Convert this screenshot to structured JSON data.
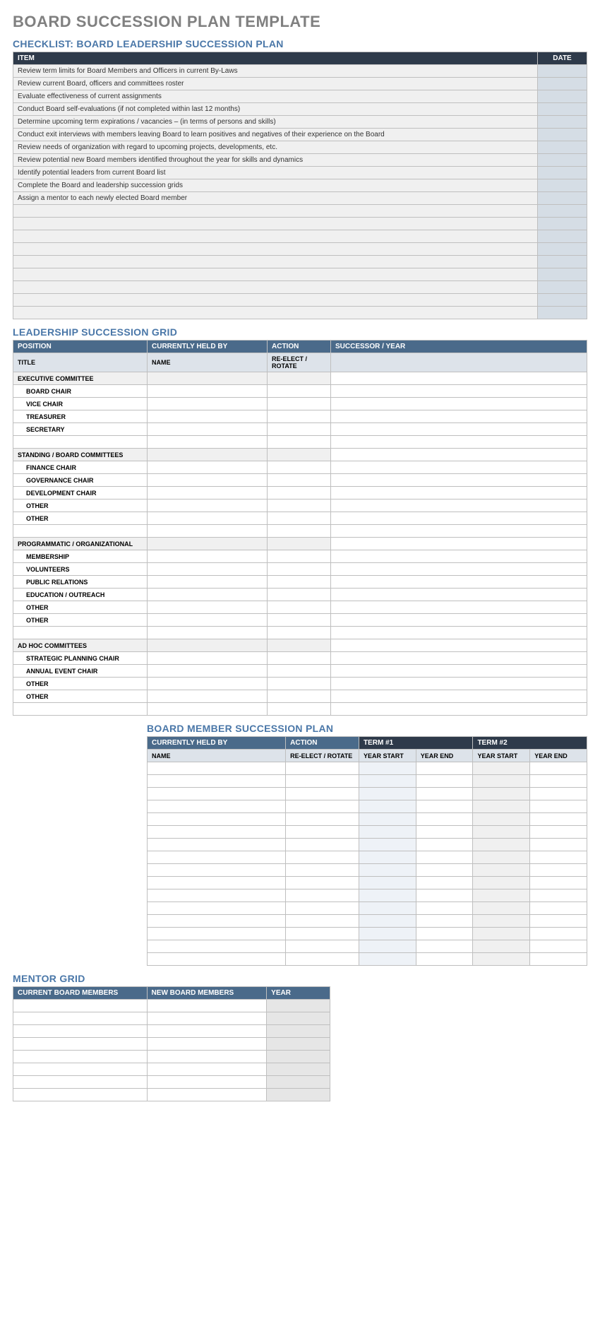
{
  "main_title": "BOARD SUCCESSION PLAN TEMPLATE",
  "checklist": {
    "title": "CHECKLIST: BOARD LEADERSHIP SUCCESSION PLAN",
    "headers": {
      "item": "ITEM",
      "date": "DATE"
    },
    "items": [
      "Review term limits for Board Members and Officers in current By-Laws",
      "Review current Board, officers and committees roster",
      "Evaluate effectiveness of current assignments",
      "Conduct Board self-evaluations (if not completed within last 12 months)",
      "Determine upcoming term expirations / vacancies – (in terms of persons and skills)",
      "Conduct exit interviews with members leaving Board to learn positives and negatives of their experience on the Board",
      "Review needs of organization with regard to upcoming projects, developments, etc.",
      "Review potential new Board members identified throughout the year for skills and dynamics",
      "Identify potential leaders from current Board list",
      "Complete the Board and leadership succession grids",
      "Assign a mentor to each newly elected Board member"
    ],
    "blank_rows": 9
  },
  "leadership_grid": {
    "title": "LEADERSHIP SUCCESSION GRID",
    "headers": {
      "position": "POSITION",
      "held_by": "CURRENTLY HELD BY",
      "action": "ACTION",
      "successor": "SUCCESSOR / YEAR"
    },
    "subheaders": {
      "title": "TITLE",
      "name": "NAME",
      "reelect": "RE-ELECT / ROTATE",
      "blank": ""
    },
    "sections": [
      {
        "group": "EXECUTIVE COMMITTEE",
        "rows": [
          "BOARD CHAIR",
          "VICE CHAIR",
          "TREASURER",
          "SECRETARY",
          ""
        ]
      },
      {
        "group": "STANDING / BOARD COMMITTEES",
        "rows": [
          "FINANCE CHAIR",
          "GOVERNANCE CHAIR",
          "DEVELOPMENT CHAIR",
          "OTHER",
          "OTHER",
          ""
        ]
      },
      {
        "group": "PROGRAMMATIC / ORGANIZATIONAL",
        "rows": [
          "MEMBERSHIP",
          "VOLUNTEERS",
          "PUBLIC RELATIONS",
          "EDUCATION / OUTREACH",
          "OTHER",
          "OTHER",
          ""
        ]
      },
      {
        "group": "AD HOC COMMITTEES",
        "rows": [
          "STRATEGIC PLANNING CHAIR",
          "ANNUAL EVENT CHAIR",
          "OTHER",
          "OTHER",
          ""
        ]
      }
    ]
  },
  "board_plan": {
    "title": "BOARD MEMBER SUCCESSION PLAN",
    "headers": {
      "held_by": "CURRENTLY HELD BY",
      "action": "ACTION",
      "term1": "TERM #1",
      "term2": "TERM #2"
    },
    "subheaders": {
      "name": "NAME",
      "reelect": "RE-ELECT / ROTATE",
      "ys": "YEAR START",
      "ye": "YEAR END"
    },
    "rows": 16
  },
  "mentor_grid": {
    "title": "MENTOR GRID",
    "headers": {
      "current": "CURRENT BOARD MEMBERS",
      "new": "NEW BOARD MEMBERS",
      "year": "YEAR"
    },
    "rows": 8
  },
  "colors": {
    "title_gray": "#808080",
    "section_blue": "#4a77a8",
    "hdr_dark": "#2e3a4a",
    "hdr_blue": "#4a6a8a",
    "date_bg": "#d5dde5",
    "stripe": "#f0f0f0",
    "subhdr_bg": "#dde3ea",
    "border": "#bfbfbf"
  }
}
